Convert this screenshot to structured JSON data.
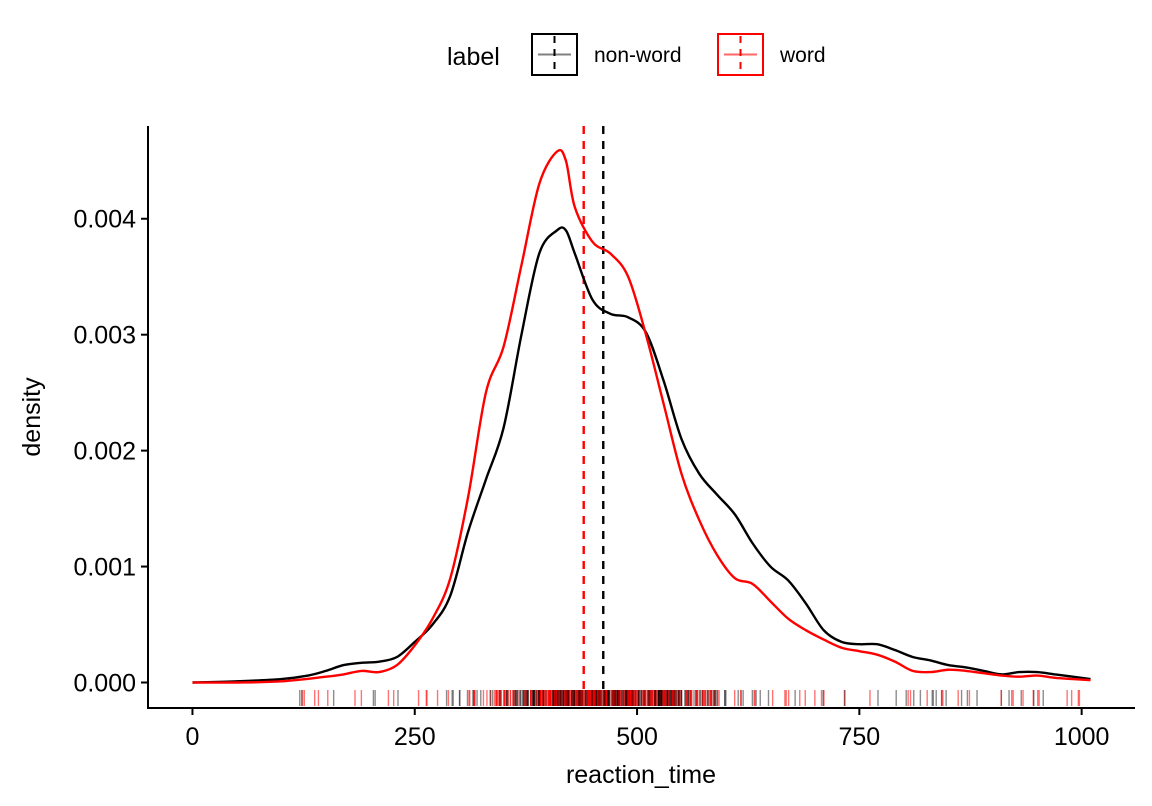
{
  "chart_data": {
    "type": "density",
    "xlabel": "reaction_time",
    "ylabel": "density",
    "xlim": [
      -50,
      1060
    ],
    "ylim": [
      -0.00022,
      0.0048
    ],
    "x_ticks": [
      0,
      250,
      500,
      750,
      1000
    ],
    "x_tick_labels": [
      "0",
      "250",
      "500",
      "750",
      "1000"
    ],
    "y_ticks": [
      0,
      0.001,
      0.002,
      0.003,
      0.004
    ],
    "y_tick_labels": [
      "0.000",
      "0.001",
      "0.002",
      "0.003",
      "0.004"
    ],
    "grid": false,
    "legend": {
      "title": "label",
      "position": "top",
      "entries": [
        {
          "name": "non-word",
          "color": "#000000"
        },
        {
          "name": "word",
          "color": "#ff0000"
        }
      ]
    },
    "series": [
      {
        "name": "non-word",
        "color": "#000000",
        "mean_line": 462,
        "x": [
          0,
          50,
          100,
          130,
          150,
          170,
          190,
          210,
          230,
          250,
          270,
          290,
          310,
          330,
          350,
          370,
          390,
          410,
          420,
          430,
          450,
          470,
          490,
          510,
          530,
          550,
          570,
          590,
          610,
          630,
          650,
          670,
          690,
          710,
          730,
          750,
          770,
          790,
          810,
          830,
          850,
          870,
          890,
          910,
          930,
          950,
          970,
          990,
          1010
        ],
        "values": [
          0.0,
          1e-05,
          3e-05,
          6e-05,
          0.0001,
          0.00015,
          0.00017,
          0.00018,
          0.00022,
          0.00035,
          0.0005,
          0.00075,
          0.0013,
          0.00175,
          0.0022,
          0.003,
          0.0037,
          0.0039,
          0.0039,
          0.0037,
          0.0033,
          0.00318,
          0.00315,
          0.00302,
          0.0026,
          0.0021,
          0.0018,
          0.00162,
          0.00145,
          0.0012,
          0.001,
          0.00088,
          0.00068,
          0.00045,
          0.00035,
          0.00033,
          0.00033,
          0.00028,
          0.00022,
          0.00019,
          0.00015,
          0.00013,
          0.0001,
          7e-05,
          9e-05,
          9e-05,
          7e-05,
          5e-05,
          3e-05
        ]
      },
      {
        "name": "word",
        "color": "#ff0000",
        "mean_line": 440,
        "x": [
          0,
          50,
          100,
          150,
          170,
          190,
          210,
          230,
          250,
          270,
          290,
          310,
          330,
          350,
          370,
          390,
          410,
          420,
          430,
          450,
          470,
          490,
          510,
          530,
          550,
          570,
          590,
          610,
          630,
          650,
          670,
          690,
          710,
          730,
          750,
          770,
          790,
          810,
          830,
          850,
          870,
          890,
          910,
          930,
          950,
          970,
          990,
          1010
        ],
        "values": [
          0.0,
          0.0,
          1e-05,
          5e-05,
          7e-05,
          0.0001,
          9e-05,
          0.00015,
          0.00032,
          0.00055,
          0.0009,
          0.0016,
          0.0025,
          0.0029,
          0.0036,
          0.0043,
          0.00458,
          0.0045,
          0.0041,
          0.0038,
          0.0037,
          0.0035,
          0.003,
          0.0024,
          0.0018,
          0.0014,
          0.0011,
          0.0009,
          0.00085,
          0.0007,
          0.00055,
          0.00045,
          0.00037,
          0.0003,
          0.00027,
          0.00024,
          0.00018,
          0.0001,
          9e-05,
          0.00011,
          0.0001,
          8e-05,
          6e-05,
          5e-05,
          6e-05,
          4e-05,
          3e-05,
          2e-05
        ]
      }
    ]
  }
}
